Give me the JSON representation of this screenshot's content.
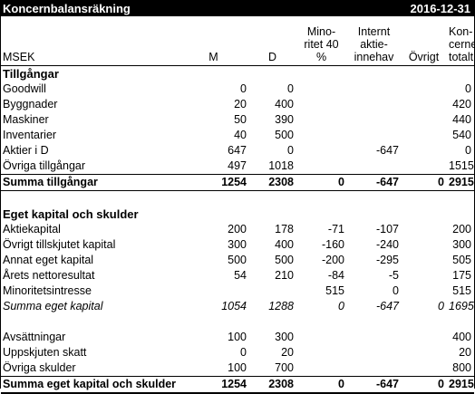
{
  "title": "Koncernbalansräkning",
  "date": "2016-12-31",
  "headers": {
    "label": "MSEK",
    "m": "M",
    "d": "D",
    "minority": "Mino-\nritet 40\n%",
    "internal": "Internt\naktie-\ninnehav",
    "other": "Övrigt",
    "group": "Kon-\ncernen\ntotalt"
  },
  "sections": {
    "assets_title": "Tillgångar",
    "equity_title": "Eget kapital och skulder"
  },
  "assets": [
    {
      "label": "Goodwill",
      "m": "0",
      "d": "0",
      "min": "",
      "int": "",
      "oth": "",
      "tot": "0"
    },
    {
      "label": "Byggnader",
      "m": "20",
      "d": "400",
      "min": "",
      "int": "",
      "oth": "",
      "tot": "420"
    },
    {
      "label": "Maskiner",
      "m": "50",
      "d": "390",
      "min": "",
      "int": "",
      "oth": "",
      "tot": "440"
    },
    {
      "label": "Inventarier",
      "m": "40",
      "d": "500",
      "min": "",
      "int": "",
      "oth": "",
      "tot": "540"
    },
    {
      "label": "Aktier i D",
      "m": "647",
      "d": "0",
      "min": "",
      "int": "-647",
      "oth": "",
      "tot": "0"
    },
    {
      "label": "Övriga tillgångar",
      "m": "497",
      "d": "1018",
      "min": "",
      "int": "",
      "oth": "",
      "tot": "1515"
    }
  ],
  "assets_sum": {
    "label": "Summa tillgångar",
    "m": "1254",
    "d": "2308",
    "min": "0",
    "int": "-647",
    "oth": "0",
    "tot": "2915"
  },
  "equity": [
    {
      "label": "Aktiekapital",
      "m": "200",
      "d": "178",
      "min": "-71",
      "int": "-107",
      "oth": "",
      "tot": "200"
    },
    {
      "label": "Övrigt tillskjutet kapital",
      "m": "300",
      "d": "400",
      "min": "-160",
      "int": "-240",
      "oth": "",
      "tot": "300"
    },
    {
      "label": "Annat eget kapital",
      "m": "500",
      "d": "500",
      "min": "-200",
      "int": "-295",
      "oth": "",
      "tot": "505"
    },
    {
      "label": "Årets nettoresultat",
      "m": "54",
      "d": "210",
      "min": "-84",
      "int": "-5",
      "oth": "",
      "tot": "175"
    },
    {
      "label": "Minoritetsintresse",
      "m": "",
      "d": "",
      "min": "515",
      "int": "0",
      "oth": "",
      "tot": "515"
    }
  ],
  "equity_sum": {
    "label": "Summa eget kapital",
    "m": "1054",
    "d": "1288",
    "min": "0",
    "int": "-647",
    "oth": "0",
    "tot": "1695"
  },
  "liabilities": [
    {
      "label": "Avsättningar",
      "m": "100",
      "d": "300",
      "min": "",
      "int": "",
      "oth": "",
      "tot": "400"
    },
    {
      "label": "Uppskjuten skatt",
      "m": "0",
      "d": "20",
      "min": "",
      "int": "",
      "oth": "",
      "tot": "20"
    },
    {
      "label": "Övriga skulder",
      "m": "100",
      "d": "700",
      "min": "",
      "int": "",
      "oth": "",
      "tot": "800"
    }
  ],
  "total_sum": {
    "label": "Summa eget kapital och skulder",
    "m": "1254",
    "d": "2308",
    "min": "0",
    "int": "-647",
    "oth": "0",
    "tot": "2915"
  }
}
